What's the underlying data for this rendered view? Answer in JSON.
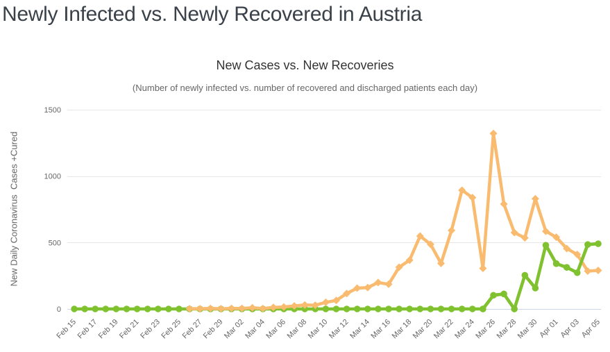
{
  "page": {
    "title": "Newly Infected vs. Newly Recovered in Austria"
  },
  "chart": {
    "title": "New Cases vs. New Recoveries",
    "subtitle": "(Number of newly infected vs. number of recovered and discharged patients each day)",
    "y_axis": {
      "title": "New Daily Coronavirus  Cases +Cured",
      "ticks": [
        0,
        500,
        1000,
        1500
      ],
      "max": 1500
    },
    "colors": {
      "new_cases": "#F9BB6F",
      "new_recoveries": "#7FC12E",
      "gridline": "#E6E6E6",
      "axis_line": "#CCD6EB",
      "label": "#666666",
      "title_text": "#333333",
      "subtitle_text": "#666666"
    },
    "chart_data": {
      "type": "line",
      "title": "New Cases vs. New Recoveries",
      "subtitle": "(Number of newly infected vs. number of recovered and discharged patients each day)",
      "ylabel": "New Daily Coronavirus  Cases +Cured",
      "ylim": [
        0,
        1500
      ],
      "grid": true,
      "legend": "none",
      "x_label_step": 2,
      "x": [
        "Feb 15",
        "Feb 16",
        "Feb 17",
        "Feb 18",
        "Feb 19",
        "Feb 20",
        "Feb 21",
        "Feb 22",
        "Feb 23",
        "Feb 24",
        "Feb 25",
        "Feb 26",
        "Feb 27",
        "Feb 28",
        "Feb 29",
        "Mar 01",
        "Mar 02",
        "Mar 03",
        "Mar 04",
        "Mar 05",
        "Mar 06",
        "Mar 07",
        "Mar 08",
        "Mar 09",
        "Mar 10",
        "Mar 11",
        "Mar 12",
        "Mar 13",
        "Mar 14",
        "Mar 15",
        "Mar 16",
        "Mar 17",
        "Mar 18",
        "Mar 19",
        "Mar 20",
        "Mar 21",
        "Mar 22",
        "Mar 23",
        "Mar 24",
        "Mar 25",
        "Mar 26",
        "Mar 27",
        "Mar 28",
        "Mar 29",
        "Mar 30",
        "Mar 31",
        "Apr 01",
        "Apr 02",
        "Apr 03",
        "Apr 04",
        "Apr 05"
      ],
      "series": [
        {
          "name": "New Cases",
          "marker": "diamond",
          "color": "#F9BB6F",
          "values": [
            null,
            null,
            null,
            null,
            null,
            null,
            null,
            null,
            null,
            null,
            null,
            2,
            2,
            4,
            2,
            4,
            4,
            9,
            3,
            12,
            15,
            23,
            30,
            28,
            50,
            64,
            116,
            157,
            161,
            199,
            186,
            314,
            367,
            549,
            487,
            343,
            591,
            894,
            838,
            306,
            1321,
            790,
            575,
            535,
            830,
            585,
            540,
            455,
            410,
            285,
            290
          ]
        },
        {
          "name": "New Recoveries",
          "marker": "circle",
          "color": "#7FC12E",
          "values": [
            0,
            0,
            0,
            0,
            0,
            0,
            0,
            0,
            0,
            0,
            0,
            0,
            0,
            0,
            0,
            0,
            0,
            0,
            0,
            0,
            0,
            0,
            0,
            0,
            0,
            0,
            0,
            0,
            0,
            0,
            0,
            0,
            0,
            0,
            0,
            0,
            0,
            0,
            0,
            0,
            103,
            113,
            0,
            254,
            157,
            480,
            341,
            313,
            273,
            485,
            491
          ]
        }
      ]
    }
  }
}
